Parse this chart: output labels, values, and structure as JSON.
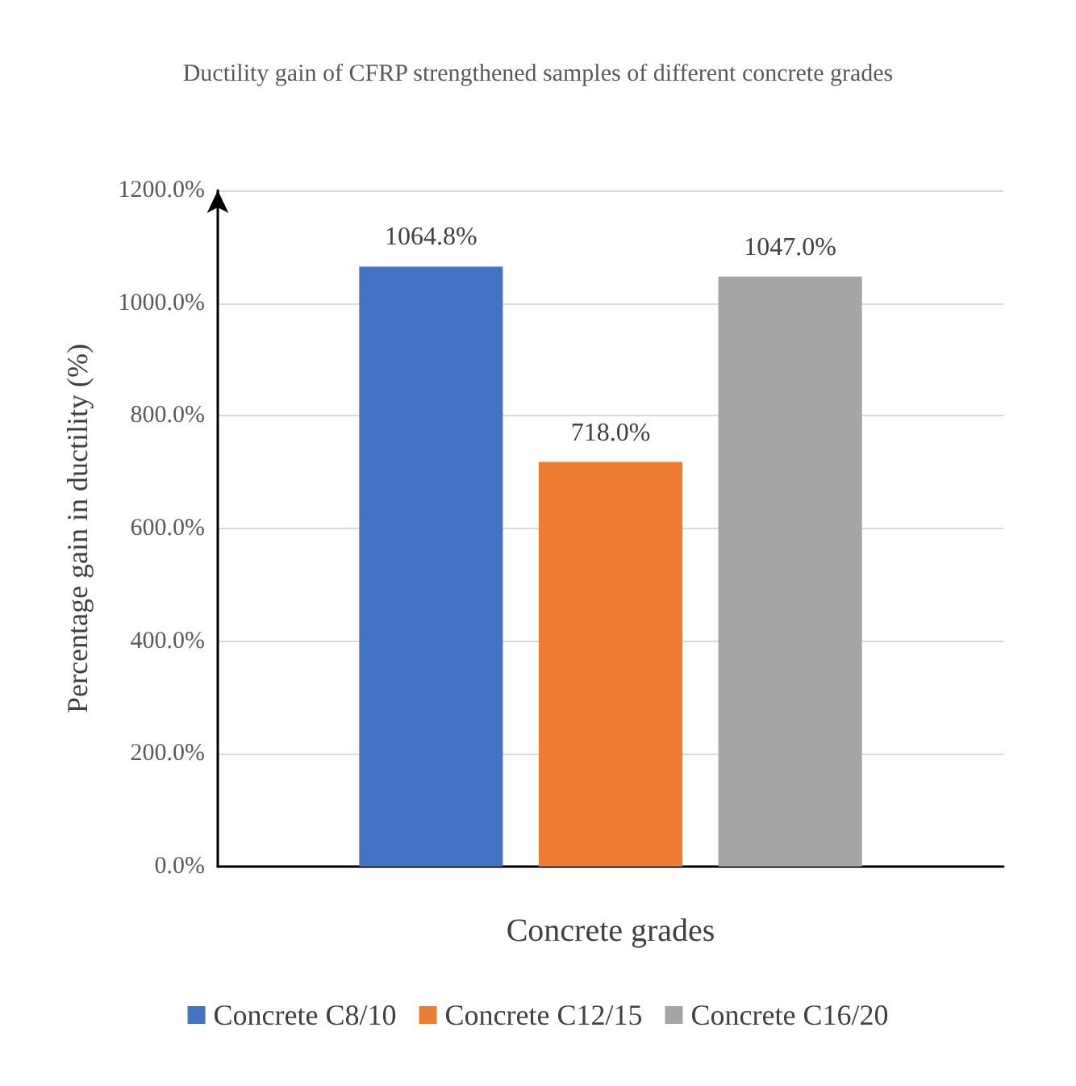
{
  "chart_data": {
    "type": "bar",
    "title": "Ductility gain of CFRP strengthened samples of different concrete grades",
    "xlabel": "Concrete grades",
    "ylabel": "Percentage gain in ductility (%)",
    "categories": [
      null
    ],
    "series": [
      {
        "name": "Concrete C8/10",
        "color": "#4472c4",
        "values": [
          1064.8
        ],
        "value_labels": [
          "1064.8%"
        ]
      },
      {
        "name": "Concrete C12/15",
        "color": "#ed7d31",
        "values": [
          718.0
        ],
        "value_labels": [
          "718.0%"
        ]
      },
      {
        "name": "Concrete C16/20",
        "color": "#a5a5a5",
        "values": [
          1047.0
        ],
        "value_labels": [
          "1047.0%"
        ]
      }
    ],
    "ylim": [
      0,
      1200
    ],
    "yticks": [
      {
        "value": 0,
        "label": "0.0%"
      },
      {
        "value": 200,
        "label": "200.0%"
      },
      {
        "value": 400,
        "label": "400.0%"
      },
      {
        "value": 600,
        "label": "600.0%"
      },
      {
        "value": 800,
        "label": "800.0%"
      },
      {
        "value": 1000,
        "label": "1000.0%"
      },
      {
        "value": 1200,
        "label": "1200.0%"
      }
    ],
    "grid": "y",
    "legend": "bottom"
  }
}
